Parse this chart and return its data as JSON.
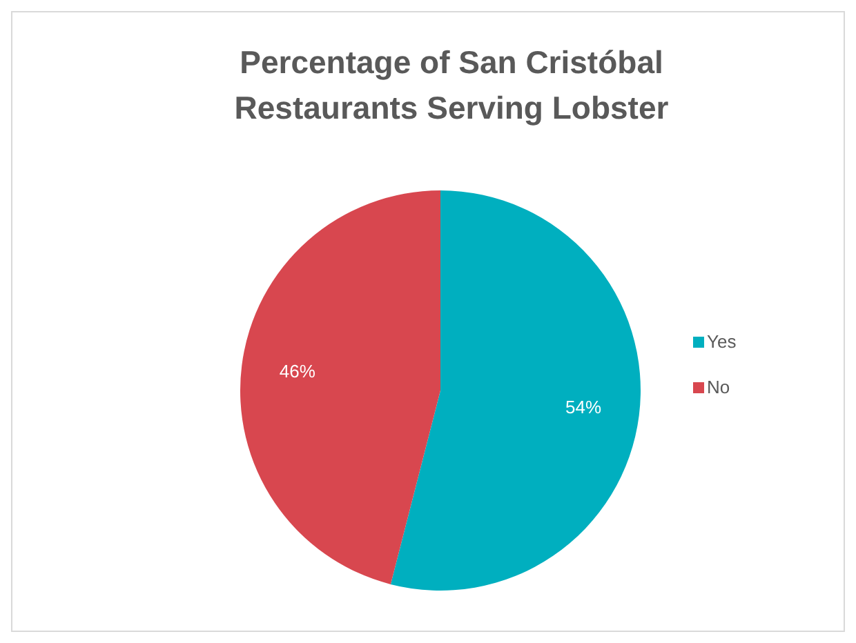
{
  "chart_data": {
    "type": "pie",
    "title": "Percentage of San Cristóbal Restaurants Serving Lobster",
    "categories": [
      "Yes",
      "No"
    ],
    "values": [
      54,
      46
    ],
    "colors": [
      "#00afbf",
      "#d8474f"
    ],
    "value_labels": [
      "54%",
      "46%"
    ],
    "legend": "right"
  }
}
